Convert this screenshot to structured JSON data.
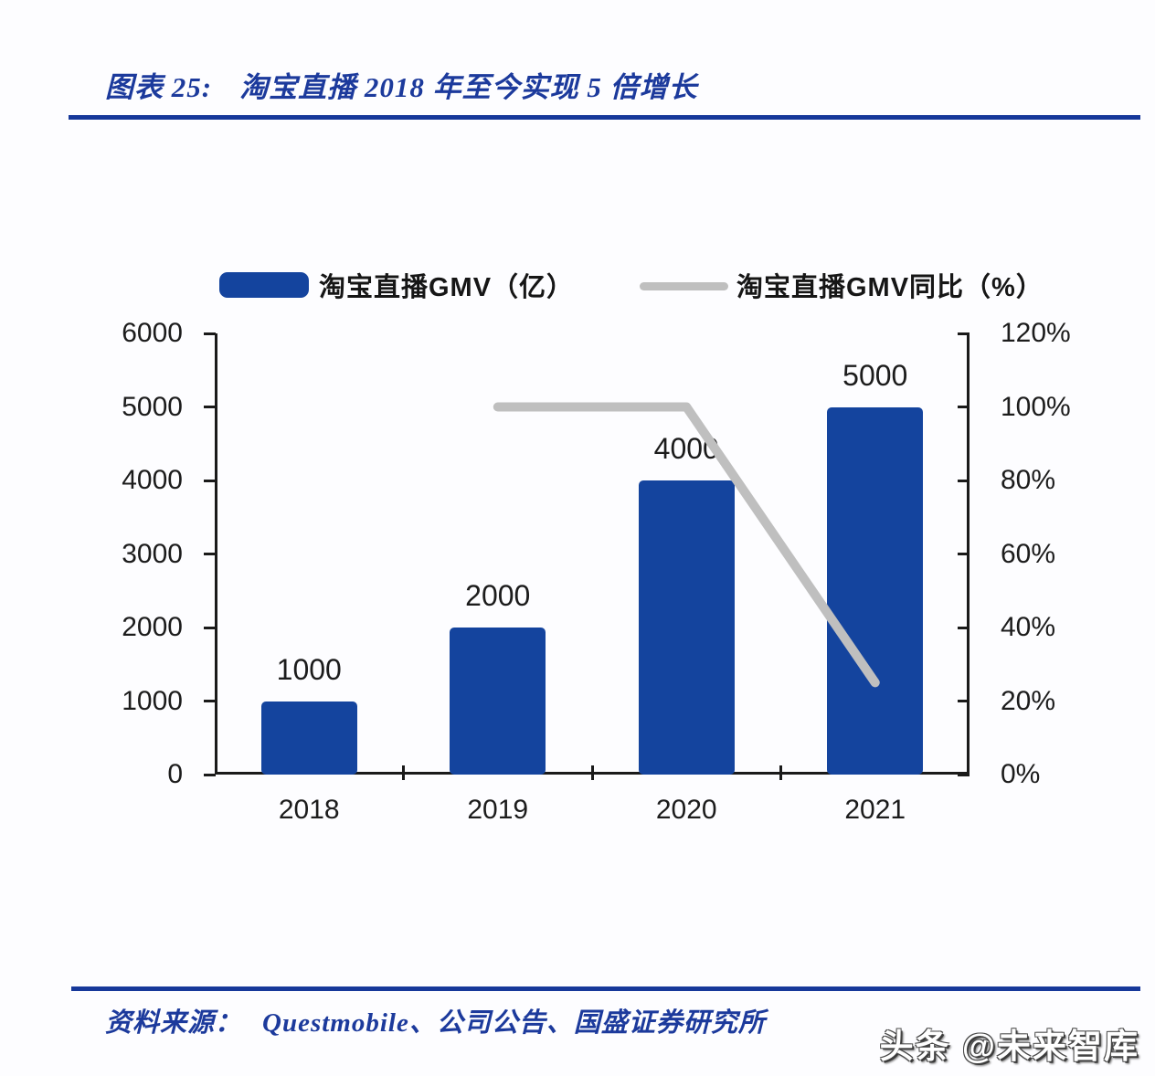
{
  "figure": {
    "label": "图表 25:",
    "title": "淘宝直播 2018 年至今实现 5 倍增长"
  },
  "source": {
    "label": "资料来源：",
    "text": "Questmobile、公司公告、国盛证券研究所"
  },
  "watermark": "头条 @未来智库",
  "colors": {
    "bar_blue": "#14449e",
    "line_gray": "#bfbfbf",
    "navy_text": "#1c3a9c",
    "rule_navy": "#16389a",
    "axis_black": "#1a1a1a"
  },
  "chart_data": {
    "type": "bar",
    "categories": [
      "2018",
      "2019",
      "2020",
      "2021"
    ],
    "series": [
      {
        "name": "淘宝直播GMV（亿）",
        "type": "bar",
        "axis": "left",
        "values": [
          1000,
          2000,
          4000,
          5000
        ],
        "color": "#14449e"
      },
      {
        "name": "淘宝直播GMV同比（%）",
        "type": "line",
        "axis": "right",
        "values": [
          null,
          100,
          100,
          25
        ],
        "color": "#bfbfbf"
      }
    ],
    "bar_labels": [
      "1000",
      "2000",
      "4000",
      "5000"
    ],
    "left_axis": {
      "min": 0,
      "max": 6000,
      "step": 1000,
      "labels": [
        "0",
        "1000",
        "2000",
        "3000",
        "4000",
        "5000",
        "6000"
      ]
    },
    "right_axis": {
      "min": 0,
      "max": 120,
      "step": 20,
      "labels": [
        "0%",
        "20%",
        "40%",
        "60%",
        "80%",
        "100%",
        "120%"
      ]
    },
    "legend": [
      {
        "label": "淘宝直播GMV（亿）",
        "swatch": "bar"
      },
      {
        "label": "淘宝直播GMV同比（%）",
        "swatch": "line"
      }
    ],
    "grid": false,
    "legend_position": "top"
  }
}
